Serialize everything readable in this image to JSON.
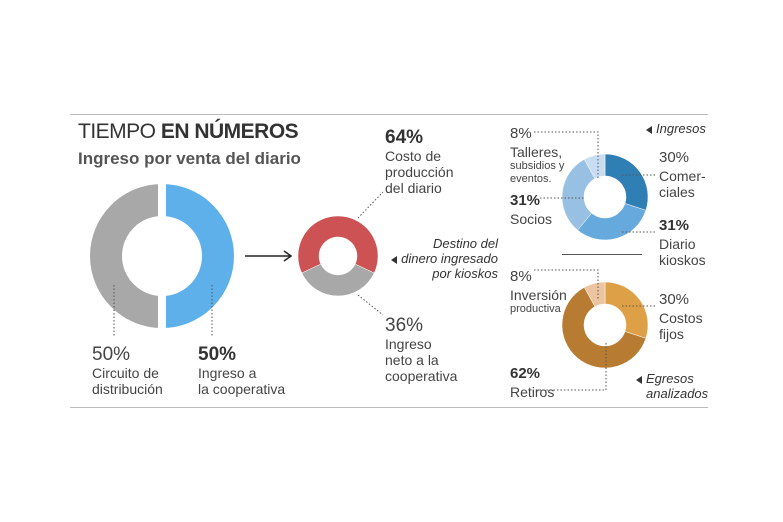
{
  "header": {
    "title_light": "TIEMPO ",
    "title_bold": "EN NÚMEROS",
    "subtitle": "Ingreso por venta del diario"
  },
  "notes": {
    "destino": [
      "Destino del",
      "dinero ingresado",
      "por kioskos"
    ],
    "ingresos": "Ingresos",
    "egresos": [
      "Egresos",
      "analizados"
    ]
  },
  "chart_data": [
    {
      "type": "pie",
      "title": "Ingreso por venta del diario",
      "slices": [
        {
          "pct_label": "50%",
          "value": 50,
          "label": [
            "Circuito de",
            "distribución"
          ],
          "color": "#a8a8a8"
        },
        {
          "pct_label": "50%",
          "value": 50,
          "label": [
            "Ingreso a",
            "la cooperativa"
          ],
          "color": "#5eb0ea"
        }
      ]
    },
    {
      "type": "pie",
      "title": "Destino del dinero ingresado por kioskos",
      "slices": [
        {
          "pct_label": "64%",
          "value": 64,
          "label": [
            "Costo de",
            "producción",
            "del diario"
          ],
          "color": "#cc5253"
        },
        {
          "pct_label": "36%",
          "value": 36,
          "label": [
            "Ingreso",
            "neto a la",
            "cooperativa"
          ],
          "color": "#a8a8a8"
        }
      ]
    },
    {
      "type": "pie",
      "title": "Ingresos",
      "slices": [
        {
          "pct_label": "30%",
          "value": 30,
          "label": [
            "Comer-",
            "ciales"
          ],
          "color": "#2f7fb4"
        },
        {
          "pct_label": "31%",
          "value": 31,
          "label": [
            "Diario",
            "kioskos"
          ],
          "color": "#66a9dc"
        },
        {
          "pct_label": "31%",
          "value": 31,
          "label": [
            "Socios"
          ],
          "color": "#98c0e2"
        },
        {
          "pct_label": "8%",
          "value": 8,
          "label": [
            "Talleres,",
            "subsidios y",
            "eventos."
          ],
          "color": "#c8ddf2"
        }
      ]
    },
    {
      "type": "pie",
      "title": "Egresos analizados",
      "slices": [
        {
          "pct_label": "30%",
          "value": 30,
          "label": [
            "Costos",
            "fijos"
          ],
          "color": "#dea046"
        },
        {
          "pct_label": "62%",
          "value": 62,
          "label": [
            "Retiros"
          ],
          "color": "#b77c31"
        },
        {
          "pct_label": "8%",
          "value": 8,
          "label": [
            "Inversión",
            "productiva"
          ],
          "color": "#ecc49f"
        }
      ]
    }
  ]
}
